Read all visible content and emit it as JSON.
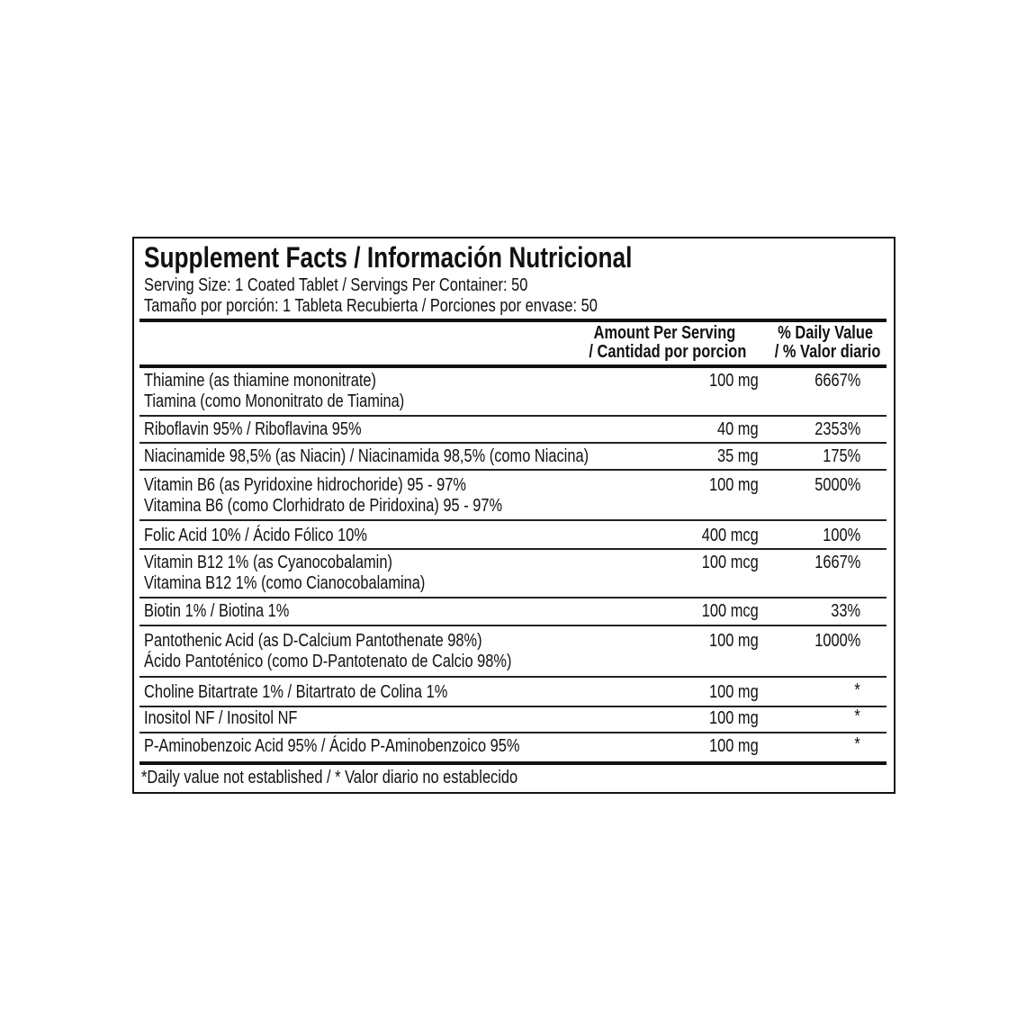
{
  "title": "Supplement Facts / Información Nutricional",
  "serving_en": "Serving Size: 1 Coated Tablet / Servings Per Container: 50",
  "serving_es": "Tamaño por porción: 1 Tableta Recubierta / Porciones por envase: 50",
  "header": {
    "amount_1": "Amount Per Serving",
    "amount_2": "/ Cantidad por porcion",
    "dv_1": "% Daily Value",
    "dv_2": "/ % Valor diario"
  },
  "rows": [
    {
      "name": "Thiamine (as thiamine mononitrate)",
      "name2": "Tiamina (como Mononitrato de Tiamina)",
      "amount": "100 mg",
      "dv": "6667%"
    },
    {
      "name": "Riboflavin 95% / Riboflavina 95%",
      "amount": "40 mg",
      "dv": "2353%"
    },
    {
      "name": "Niacinamide 98,5% (as Niacin) / Niacinamida 98,5% (como Niacina)",
      "amount": "35 mg",
      "dv": "175%"
    },
    {
      "name": "Vitamin B6 (as Pyridoxine hidrochoride) 95 - 97%",
      "name2": "Vitamina B6 (como Clorhidrato de Piridoxina) 95 - 97%",
      "amount": "100 mg",
      "dv": "5000%"
    },
    {
      "name": "Folic Acid 10%  / Ácido Fólico 10%",
      "amount": "400 mcg",
      "dv": "100%"
    },
    {
      "name": "Vitamin B12 1% (as Cyanocobalamin)",
      "name2": "Vitamina B12 1% (como Cianocobalamina)",
      "amount": "100 mcg",
      "dv": "1667%"
    },
    {
      "name": "Biotin 1% / Biotina 1%",
      "amount": "100 mcg",
      "dv": "33%"
    },
    {
      "name": "Pantothenic Acid (as D-Calcium Pantothenate 98%)",
      "name2": "Ácido Pantoténico (como D-Pantotenato de Calcio 98%)",
      "amount": "100 mg",
      "dv": "1000%"
    },
    {
      "name": "Choline Bitartrate 1%  / Bitartrato de Colina 1%",
      "amount": "100 mg",
      "dv": "*"
    },
    {
      "name": "Inositol NF / Inositol NF",
      "amount": "100 mg",
      "dv": "*"
    },
    {
      "name": "P-Aminobenzoic Acid 95% / Ácido P-Aminobenzoico 95%",
      "amount": "100 mg",
      "dv": "*"
    }
  ],
  "footnote": "*Daily value not established / * Valor diario no establecido"
}
